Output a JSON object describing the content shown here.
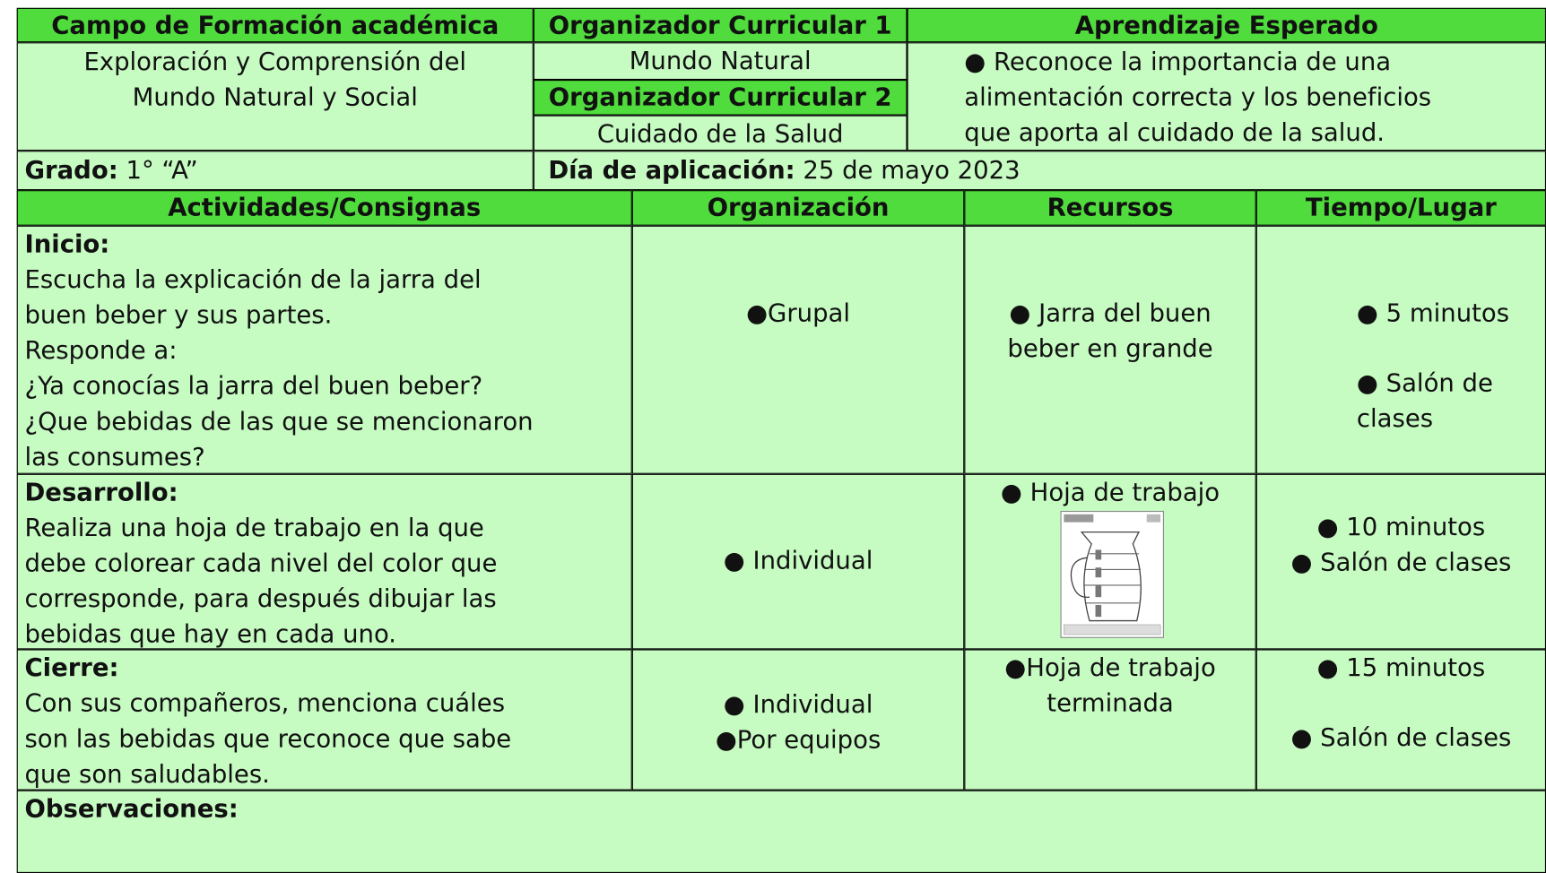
{
  "info": {
    "campo": {
      "label": "Campo de Formación académica",
      "value": [
        "Exploración y Comprensión del",
        "Mundo Natural y Social"
      ]
    },
    "organizador1": {
      "label": "Organizador Curricular 1",
      "value": "Mundo Natural"
    },
    "organizador2": {
      "label": "Organizador Curricular 2",
      "value": "Cuidado de la Salud"
    },
    "aprendizaje": {
      "label": "Aprendizaje Esperado",
      "value": [
        "● Reconoce la importancia de una",
        "alimentación correcta y los beneficios",
        "que aporta al cuidado de la salud."
      ]
    },
    "grado": {
      "label": "Grado:",
      "value": "1° “A”"
    },
    "dia": {
      "label": "Día de aplicación:",
      "value": "25 de mayo 2023"
    }
  },
  "table": {
    "columns": [
      "Actividades/Consignas",
      "Organización",
      "Recursos",
      "Tiempo/Lugar"
    ],
    "rows": [
      {
        "phase": "Inicio:",
        "activity": [
          "Escucha la explicación de la jarra del",
          "buen beber y sus partes.",
          "Responde a:",
          "¿Ya conocías la jarra del buen beber?",
          "¿Que bebidas de las que se mencionaron",
          "las consumes?"
        ],
        "organization": [
          "●Grupal"
        ],
        "resources": [
          "● Jarra del buen",
          "beber en grande"
        ],
        "time": [
          "● 5 minutos",
          "● Salón de",
          "clases"
        ]
      },
      {
        "phase": "Desarrollo:",
        "activity": [
          "Realiza una hoja de trabajo en la que",
          "debe colorear cada nivel del color que",
          "corresponde, para después dibujar las",
          "bebidas que hay en cada uno."
        ],
        "organization": [
          "● Individual"
        ],
        "resources": [
          "● Hoja de trabajo"
        ],
        "time": [
          "● 10 minutos",
          "● Salón de clases"
        ]
      },
      {
        "phase": "Cierre:",
        "activity": [
          "Con sus compañeros, menciona cuáles",
          "son las bebidas que reconoce que sabe",
          "que son saludables."
        ],
        "organization": [
          "● Individual",
          "●Por equipos"
        ],
        "resources": [
          "●Hoja de trabajo",
          "terminada"
        ],
        "time": [
          "● 15 minutos",
          "● Salón de clases"
        ]
      }
    ],
    "observations": "Observaciones:"
  }
}
